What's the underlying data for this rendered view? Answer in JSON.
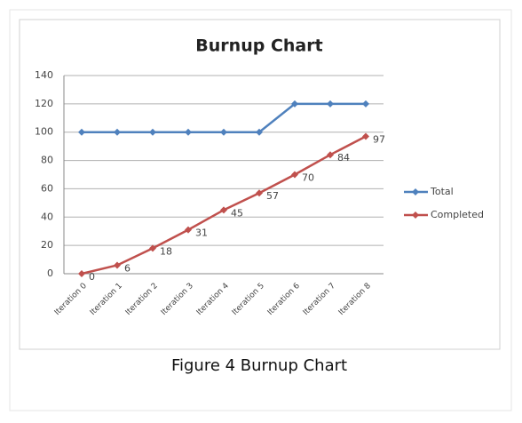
{
  "chart_data": {
    "type": "line",
    "title": "Burnup Chart",
    "categories": [
      "Iteration 0",
      "Iteration 1",
      "Iteration 2",
      "Iteration 3",
      "Iteration 4",
      "Iteration 5",
      "Iteration 6",
      "Iteration 7",
      "Iteration 8"
    ],
    "series": [
      {
        "name": "Total",
        "color": "#4f81bd",
        "values": [
          100,
          100,
          100,
          100,
          100,
          100,
          120,
          120,
          120
        ]
      },
      {
        "name": "Completed",
        "color": "#c0504d",
        "values": [
          0,
          6,
          18,
          31,
          45,
          57,
          70,
          84,
          97
        ],
        "data_labels": true
      }
    ],
    "ylim": [
      0,
      140
    ],
    "yticks": [
      0,
      20,
      40,
      60,
      80,
      100,
      120,
      140
    ],
    "grid": true,
    "legend": "right"
  },
  "caption": "Figure 4 Burnup Chart"
}
